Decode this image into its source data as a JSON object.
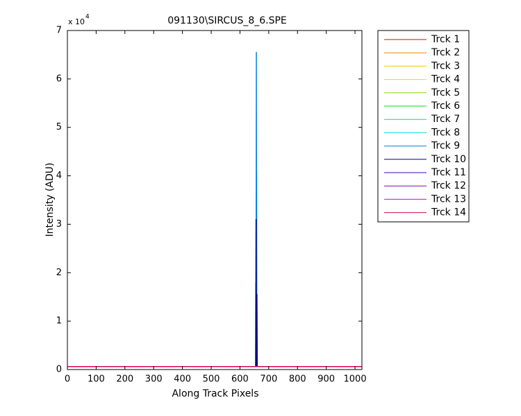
{
  "chart_data": {
    "type": "line",
    "title": "091130\\SIRCUS_8_6.SPE",
    "x_label": "Along Track Pixels",
    "y_label": "Intensity (ADU)",
    "y_multiplier": "x 10",
    "y_exponent": "4",
    "xlim": [
      0,
      1024
    ],
    "xticks": [
      0,
      100,
      200,
      300,
      400,
      500,
      600,
      700,
      800,
      900,
      1000
    ],
    "ylim": [
      0,
      70000
    ],
    "yticks": [
      {
        "value": 0,
        "label": "0"
      },
      {
        "value": 10000,
        "label": "1"
      },
      {
        "value": 20000,
        "label": "2"
      },
      {
        "value": 30000,
        "label": "3"
      },
      {
        "value": 40000,
        "label": "4"
      },
      {
        "value": 50000,
        "label": "5"
      },
      {
        "value": 60000,
        "label": "6"
      },
      {
        "value": 70000,
        "label": "7"
      }
    ],
    "grid": false,
    "legend": "outside-top-right",
    "x": [
      0,
      650,
      654,
      655,
      656,
      657,
      658,
      659,
      660,
      664,
      1023
    ],
    "series": [
      {
        "name": "Trck 1",
        "color": "#e00000",
        "values": [
          600,
          600,
          600,
          600,
          600,
          600,
          600,
          600,
          600,
          600,
          600
        ]
      },
      {
        "name": "Trck 2",
        "color": "#ff7f00",
        "values": [
          600,
          600,
          600,
          600,
          600,
          600,
          600,
          600,
          600,
          600,
          600
        ]
      },
      {
        "name": "Trck 3",
        "color": "#f0c800",
        "values": [
          600,
          600,
          600,
          600,
          600,
          600,
          600,
          600,
          600,
          600,
          600
        ]
      },
      {
        "name": "Trck 4",
        "color": "#d8e000",
        "values": [
          600,
          600,
          600,
          600,
          600,
          600,
          600,
          600,
          600,
          600,
          600
        ]
      },
      {
        "name": "Trck 5",
        "color": "#80e000",
        "values": [
          600,
          600,
          600,
          600,
          600,
          600,
          600,
          600,
          600,
          600,
          600
        ]
      },
      {
        "name": "Trck 6",
        "color": "#00e000",
        "values": [
          600,
          600,
          600,
          600,
          600,
          600,
          600,
          600,
          600,
          600,
          600
        ]
      },
      {
        "name": "Trck 7",
        "color": "#00e080",
        "values": [
          600,
          600,
          600,
          18000,
          600,
          600,
          600,
          600,
          600,
          600,
          600
        ]
      },
      {
        "name": "Trck 8",
        "color": "#00e0e0",
        "values": [
          600,
          600,
          600,
          600,
          600,
          600,
          41000,
          600,
          600,
          600,
          600
        ]
      },
      {
        "name": "Trck 9",
        "color": "#0080e0",
        "values": [
          600,
          600,
          600,
          600,
          600,
          65500,
          600,
          600,
          600,
          600,
          600
        ]
      },
      {
        "name": "Trck 10",
        "color": "#000080",
        "values": [
          600,
          600,
          600,
          600,
          31000,
          600,
          600,
          15500,
          600,
          600,
          600
        ]
      },
      {
        "name": "Trck 11",
        "color": "#4000c0",
        "values": [
          600,
          600,
          600,
          600,
          600,
          600,
          600,
          600,
          600,
          600,
          600
        ]
      },
      {
        "name": "Trck 12",
        "color": "#8000c0",
        "values": [
          600,
          600,
          600,
          600,
          600,
          600,
          600,
          600,
          600,
          600,
          600
        ]
      },
      {
        "name": "Trck 13",
        "color": "#d000d0",
        "values": [
          600,
          600,
          600,
          600,
          600,
          600,
          600,
          600,
          600,
          600,
          600
        ]
      },
      {
        "name": "Trck 14",
        "color": "#d00060",
        "values": [
          600,
          600,
          600,
          600,
          600,
          600,
          600,
          600,
          600,
          600,
          600
        ]
      }
    ]
  }
}
